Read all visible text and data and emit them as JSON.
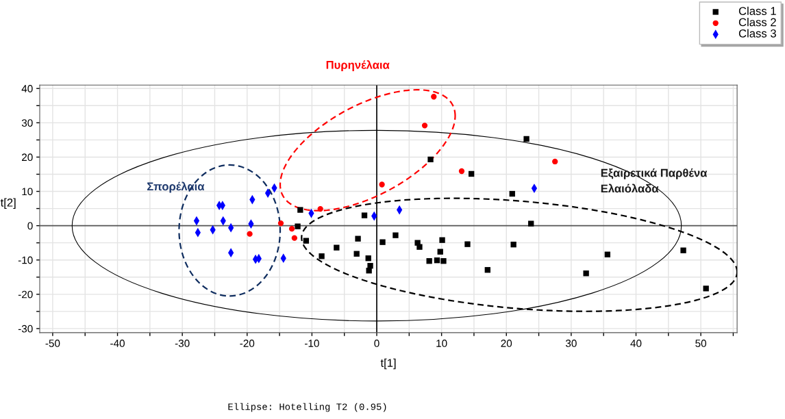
{
  "chart_data": {
    "type": "scatter",
    "xlabel": "t[1]",
    "ylabel": "t[2]",
    "xlim": [
      -52,
      55.6
    ],
    "ylim": [
      -31.2,
      41
    ],
    "xticks": [
      -50,
      {
        "value": -45,
        "label": null
      },
      -40,
      {
        "value": -35,
        "label": null
      },
      -30,
      {
        "value": -25,
        "label": null
      },
      -20,
      {
        "value": -15,
        "label": null
      },
      -10,
      {
        "value": -5,
        "label": null
      },
      0,
      {
        "value": 5,
        "label": null
      },
      10,
      {
        "value": 15,
        "label": null
      },
      20,
      {
        "value": 25,
        "label": null
      },
      30,
      {
        "value": 35,
        "label": null
      },
      40,
      {
        "value": 45,
        "label": null
      },
      50,
      {
        "value": 55,
        "label": null
      }
    ],
    "yticks": [
      -30,
      {
        "value": -25,
        "label": null
      },
      -20,
      {
        "value": -15,
        "label": null
      },
      -10,
      {
        "value": -5,
        "label": null
      },
      0,
      {
        "value": 5,
        "label": null
      },
      10,
      {
        "value": 15,
        "label": null
      },
      20,
      {
        "value": 25,
        "label": null
      },
      30,
      {
        "value": 35,
        "label": null
      },
      40
    ],
    "grid": true,
    "legend": "top right",
    "ref_lines": [
      {
        "axis": "y",
        "value": 0,
        "color": "#555555"
      },
      {
        "axis": "x",
        "value": 0,
        "color": "#000000"
      }
    ],
    "series": [
      {
        "name": "Class 1",
        "color": "#000000",
        "marker": "square",
        "x": [
          -11.8,
          -12.2,
          -10.9,
          -8.5,
          -6.2,
          -1.9,
          -2.9,
          -3.1,
          -1.3,
          -1.0,
          -1.2,
          0.9,
          2.9,
          6.3,
          6.6,
          10.1,
          9.8,
          9.3,
          8.1,
          10.3,
          14.0,
          17.1,
          8.3,
          14.6,
          23.1,
          20.9,
          23.8,
          21.1,
          32.3,
          35.6,
          47.3,
          50.8
        ],
        "values": [
          4.6,
          -0.2,
          -4.4,
          -8.9,
          -6.4,
          3.0,
          -3.8,
          -8.2,
          -9.5,
          -11.7,
          -13.1,
          -4.8,
          -2.8,
          -5.0,
          -6.2,
          -4.2,
          -7.6,
          -10.1,
          -10.3,
          -10.3,
          -5.4,
          -12.9,
          19.3,
          15.1,
          25.3,
          9.3,
          0.6,
          -5.5,
          -13.9,
          -8.4,
          -7.2,
          -18.3
        ]
      },
      {
        "name": "Class 2",
        "color": "#ff0000",
        "marker": "circle",
        "x": [
          8.8,
          7.4,
          13.1,
          27.5,
          0.8,
          -8.7,
          -14.8,
          -13.1,
          -12.7,
          -19.6
        ],
        "values": [
          37.6,
          29.2,
          15.9,
          18.7,
          12.0,
          4.9,
          0.7,
          -0.9,
          -3.6,
          -2.4
        ]
      },
      {
        "name": "Class 3",
        "color": "#0000ff",
        "marker": "diamond",
        "x": [
          -27.8,
          -27.6,
          -25.3,
          -24.3,
          -23.8,
          -23.7,
          -22.5,
          -22.5,
          -19.2,
          -19.4,
          -18.7,
          -18.2,
          -16.8,
          -15.8,
          -14.4,
          -10.1,
          -0.4,
          3.5,
          24.3
        ],
        "values": [
          1.4,
          -2.0,
          -1.2,
          5.9,
          5.9,
          1.4,
          -0.6,
          -7.9,
          7.6,
          0.5,
          -9.8,
          -9.6,
          9.5,
          11.0,
          -9.5,
          3.6,
          2.8,
          4.6,
          10.9
        ]
      }
    ],
    "annotations": [
      "Πυρηνέλαια",
      "Σπορέλαια",
      "Εξαιρετικά Παρθένα\nΕλαιόλαδα",
      "Ellipse: Hotelling T2 (0.95)"
    ]
  }
}
